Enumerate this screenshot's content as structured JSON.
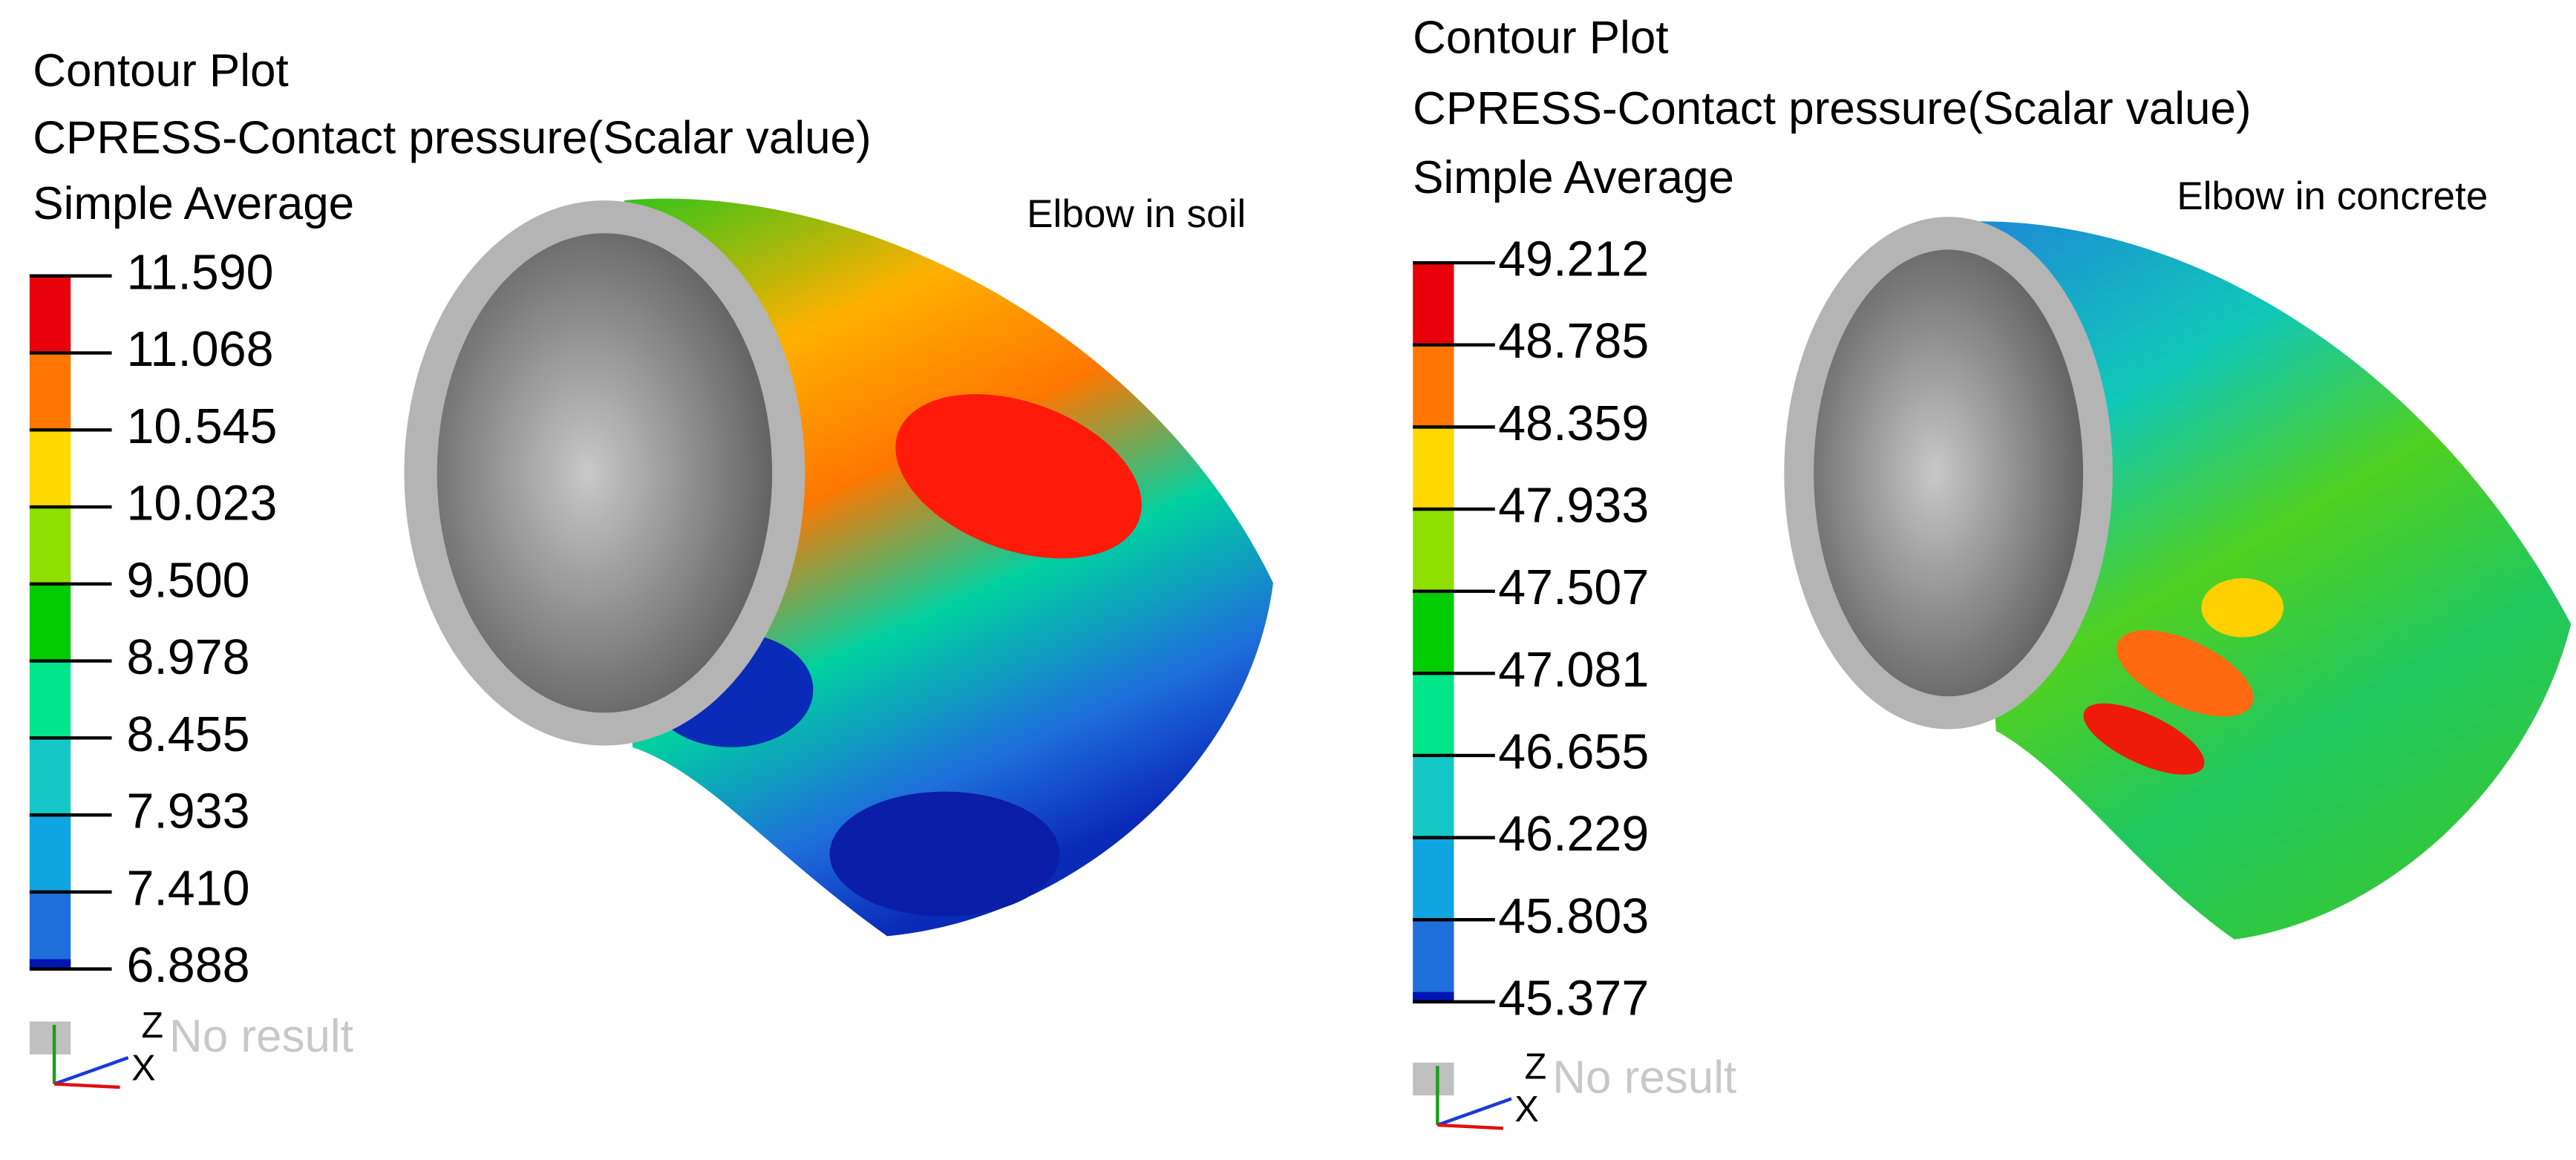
{
  "panels": [
    {
      "title_lines": [
        "Contour Plot",
        "CPRESS-Contact pressure(Scalar value)",
        "Simple Average"
      ],
      "label": "Elbow in soil",
      "legend_values": [
        "11.590",
        "11.068",
        "10.545",
        "10.023",
        "9.500",
        "8.978",
        "8.455",
        "7.933",
        "7.410",
        "6.888"
      ],
      "no_result": "No result",
      "axis_z": "Z",
      "axis_x": "X"
    },
    {
      "title_lines": [
        "Contour Plot",
        "CPRESS-Contact pressure(Scalar value)",
        "Simple Average"
      ],
      "label": "Elbow in concrete",
      "legend_values": [
        "49.212",
        "48.785",
        "48.359",
        "47.933",
        "47.507",
        "47.081",
        "46.655",
        "46.229",
        "45.803",
        "45.377"
      ],
      "no_result": "No result",
      "axis_z": "Z",
      "axis_x": "X"
    }
  ]
}
